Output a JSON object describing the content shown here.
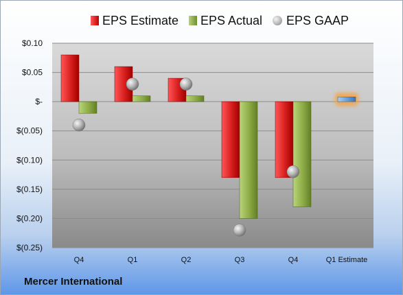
{
  "chart_data": {
    "type": "bar",
    "categories": [
      "Q4",
      "Q1",
      "Q2",
      "Q3",
      "Q4",
      "Q1 Estimate"
    ],
    "series": [
      {
        "name": "EPS Estimate",
        "values": [
          0.08,
          0.06,
          0.04,
          -0.13,
          -0.13,
          0.008
        ],
        "color": "#e02020"
      },
      {
        "name": "EPS Actual",
        "values": [
          -0.02,
          0.01,
          0.01,
          -0.2,
          -0.18,
          null
        ],
        "color": "#8fb04a"
      },
      {
        "name": "EPS GAAP",
        "values": [
          -0.04,
          0.03,
          0.03,
          -0.22,
          -0.12,
          null
        ],
        "color": "#a6a6a6"
      }
    ],
    "y_ticks": [
      {
        "value": 0.1,
        "label": "$0.10"
      },
      {
        "value": 0.05,
        "label": "$0.05"
      },
      {
        "value": 0,
        "label": "$-"
      },
      {
        "value": -0.05,
        "label": "$(0.05)"
      },
      {
        "value": -0.1,
        "label": "$(0.10)"
      },
      {
        "value": -0.15,
        "label": "$(0.15)"
      },
      {
        "value": -0.2,
        "label": "$(0.20)"
      },
      {
        "value": -0.25,
        "label": "$(0.25)"
      }
    ],
    "ylim": [
      -0.25,
      0.1
    ],
    "grid": true,
    "legend_position": "top",
    "estimate_bar_color": "#6fa8dc",
    "estimate_glow_color": "#f5a142"
  },
  "company": "Mercer International"
}
